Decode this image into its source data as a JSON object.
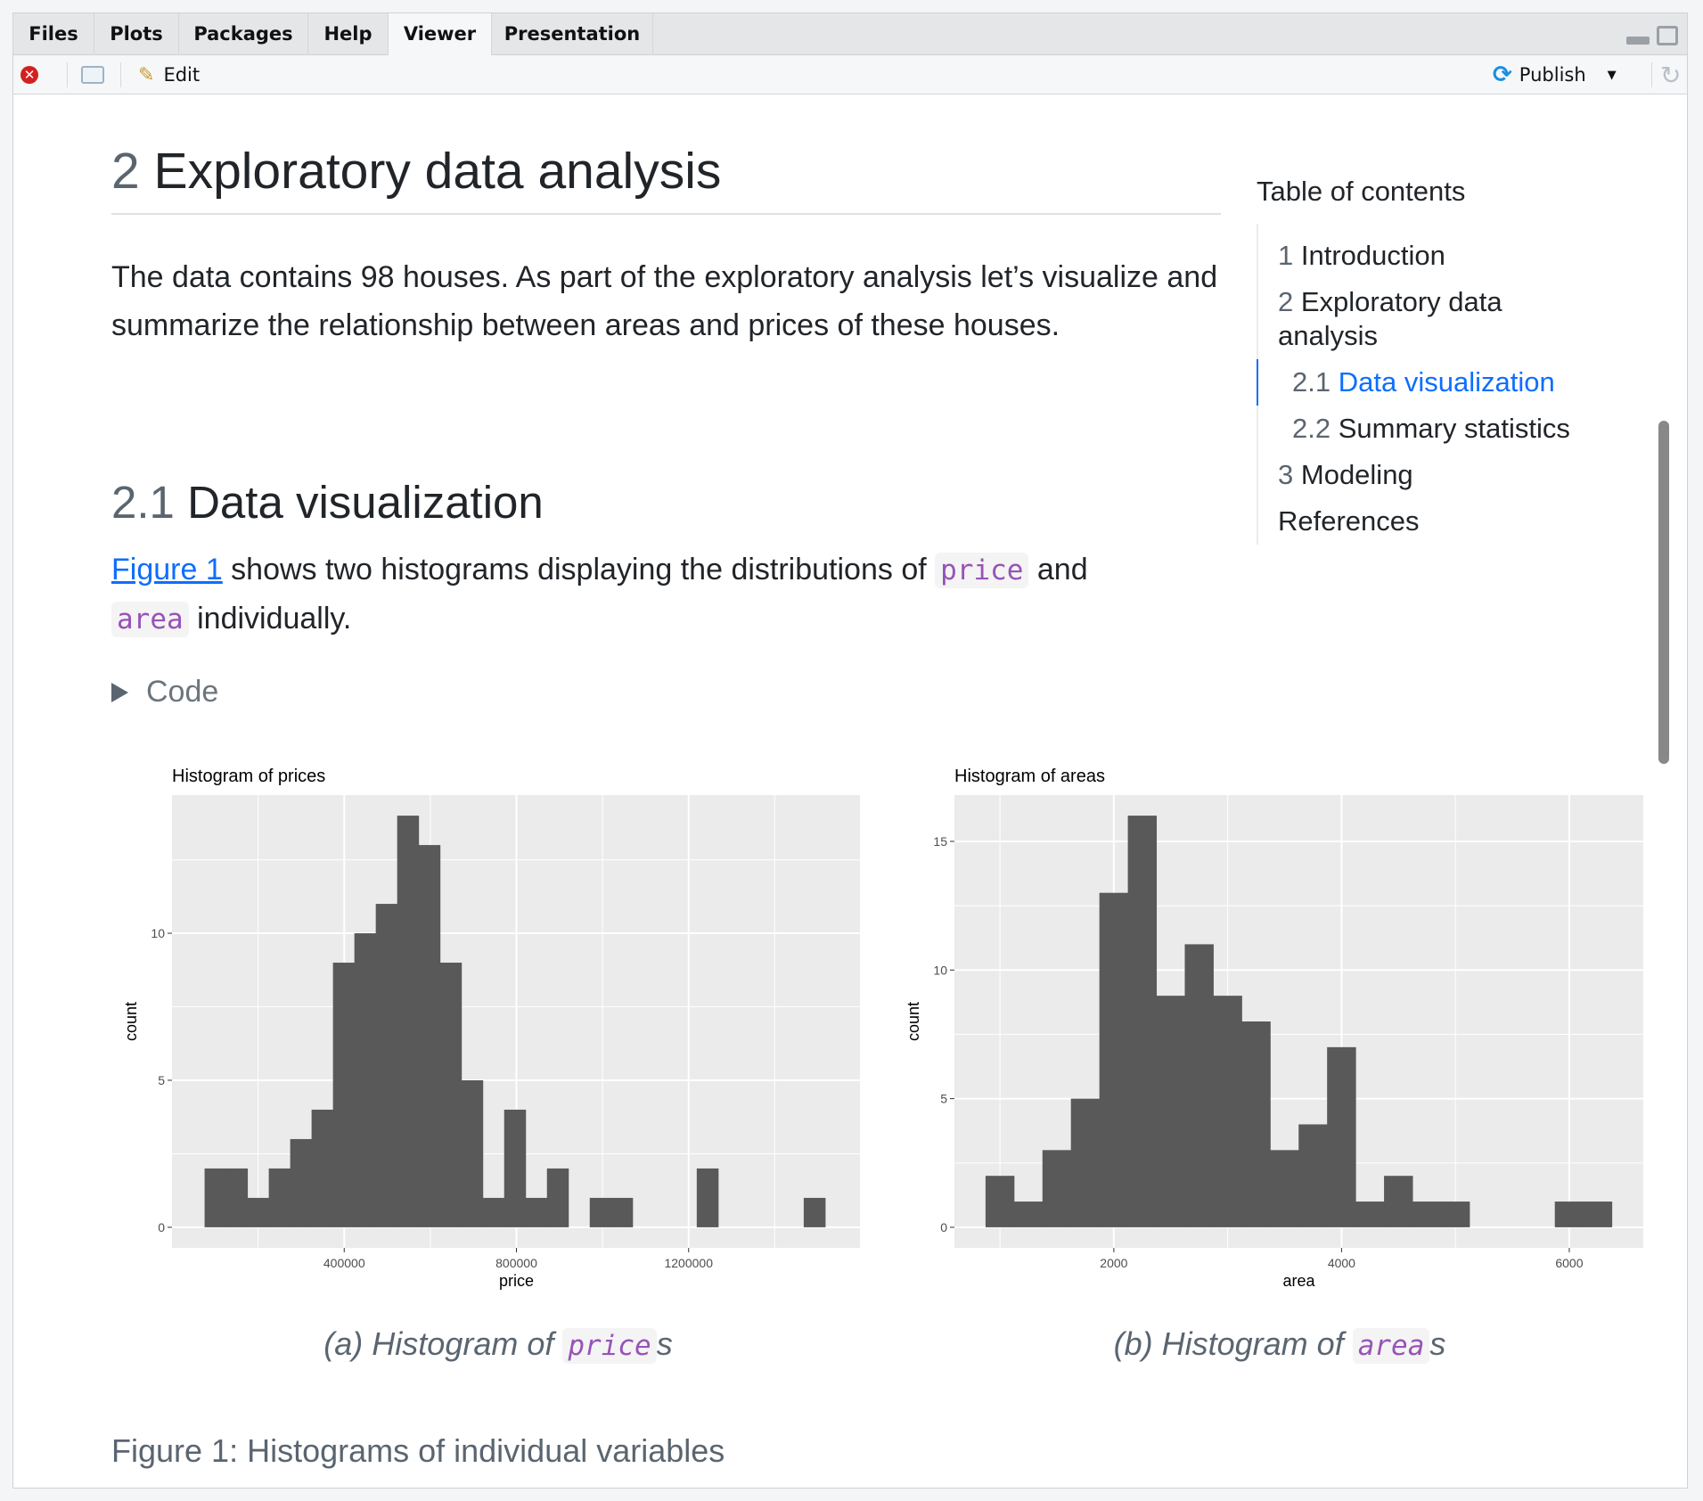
{
  "tabs": [
    {
      "label": "Files"
    },
    {
      "label": "Plots"
    },
    {
      "label": "Packages"
    },
    {
      "label": "Help"
    },
    {
      "label": "Viewer",
      "active": true
    },
    {
      "label": "Presentation"
    }
  ],
  "toolbar": {
    "edit_label": "Edit",
    "publish_label": "Publish",
    "icons": [
      "stop-icon",
      "export-icon",
      "edit-icon",
      "publish-icon",
      "refresh-icon"
    ]
  },
  "doc": {
    "h1_num": "2",
    "h1_text": "Exploratory data analysis",
    "intro": "The data contains 98 houses. As part of the exploratory analysis let’s visualize and summarize the relationship between areas and prices of these houses.",
    "h2_num": "2.1",
    "h2_text": "Data visualization",
    "p2_link": "Figure 1",
    "p2_a": " shows two histograms displaying the distributions of ",
    "p2_code1": "price",
    "p2_b": " and ",
    "p2_code2": "area",
    "p2_c": " individually.",
    "code_label": "Code",
    "subcap_a_pre": "(a) Histogram of ",
    "subcap_a_code": "price",
    "subcap_a_post": "s",
    "subcap_b_pre": "(b) Histogram of ",
    "subcap_b_code": "area",
    "subcap_b_post": "s",
    "figure_caption": "Figure 1: Histograms of individual variables"
  },
  "toc": {
    "title": "Table of contents",
    "items": [
      {
        "num": "1",
        "label": "Introduction"
      },
      {
        "num": "2",
        "label": "Exploratory data analysis"
      },
      {
        "num": "2.1",
        "label": "Data visualization",
        "active": true
      },
      {
        "num": "2.2",
        "label": "Summary statistics"
      },
      {
        "num": "3",
        "label": "Modeling"
      },
      {
        "num": "",
        "label": "References"
      }
    ]
  },
  "colors": {
    "accent": "#0d6efd",
    "code": "#9753b8",
    "bar": "#595959",
    "panel": "#ebebeb"
  },
  "chart_data": [
    {
      "type": "bar",
      "title": "Histogram of prices",
      "xlabel": "price",
      "ylabel": "count",
      "bin_start": 75700,
      "bin_width": 49700,
      "counts": [
        2,
        2,
        1,
        2,
        3,
        4,
        9,
        10,
        11,
        14,
        13,
        9,
        5,
        1,
        4,
        1,
        2,
        0,
        1,
        1,
        0,
        0,
        0,
        2,
        0,
        0,
        0,
        0,
        1
      ],
      "xlim": [
        0,
        1600000
      ],
      "ylim": [
        -0.7,
        14.7
      ],
      "xticks": [
        400000,
        800000,
        1200000
      ],
      "xtick_labels": [
        "400000",
        "800000",
        "1200000"
      ],
      "yticks": [
        0,
        5,
        10
      ],
      "ytick_labels": [
        "0",
        "5",
        "10"
      ],
      "grid": true
    },
    {
      "type": "bar",
      "title": "Histogram of areas",
      "xlabel": "area",
      "ylabel": "count",
      "bin_start": 873,
      "bin_width": 250,
      "counts": [
        2,
        1,
        3,
        5,
        13,
        16,
        9,
        11,
        9,
        8,
        3,
        4,
        7,
        1,
        2,
        1,
        1,
        0,
        0,
        0,
        1,
        1
      ],
      "xlim": [
        600,
        6650
      ],
      "ylim": [
        -0.8,
        16.8
      ],
      "xticks": [
        2000,
        4000,
        6000
      ],
      "xtick_labels": [
        "2000",
        "4000",
        "6000"
      ],
      "yticks": [
        0,
        5,
        10,
        15
      ],
      "ytick_labels": [
        "0",
        "5",
        "10",
        "15"
      ],
      "grid": true
    }
  ]
}
